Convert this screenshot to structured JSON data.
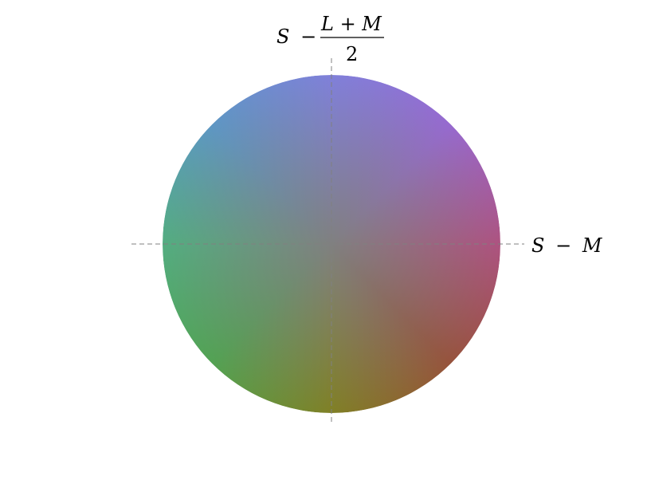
{
  "diagram": {
    "horizontal_axis_label": {
      "minuend": "S",
      "operator": "−",
      "subtrahend": "M"
    },
    "vertical_axis_label": {
      "lead": "S",
      "operator": "−",
      "numerator": "L + M",
      "denominator": "2"
    },
    "colors": {
      "center": "#808080",
      "up": "#8080ff",
      "down": "#808000",
      "right": "#c04080",
      "left": "#40c080",
      "axis_line": "#808080"
    }
  }
}
